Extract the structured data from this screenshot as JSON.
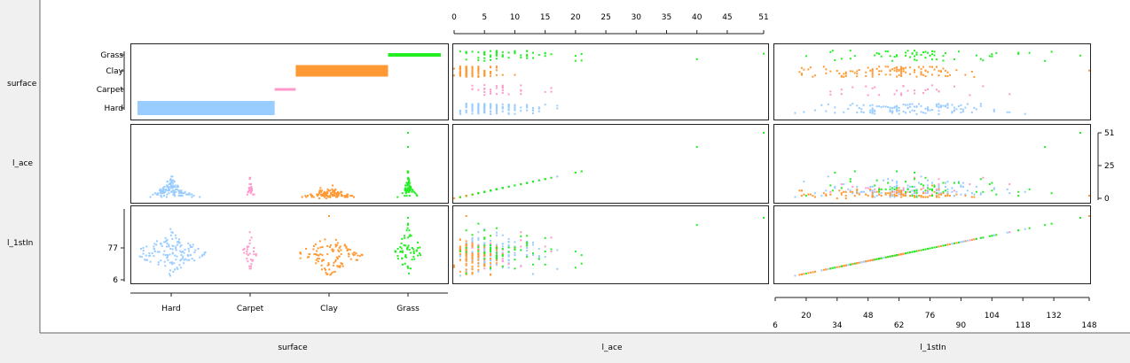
{
  "colors": {
    "Hard": "#99ccff",
    "Carpet": "#ff99cc",
    "Clay": "#ff9933",
    "Grass": "#22ee22"
  },
  "chart_data": {
    "type": "scatter",
    "variables": [
      "surface",
      "l_ace",
      "l_1stIn"
    ],
    "surface": {
      "categories": [
        "Hard",
        "Carpet",
        "Clay",
        "Grass"
      ],
      "counts": [
        52,
        8,
        35,
        20
      ],
      "counts_unit": "percent of rows (shown as bar widths)"
    },
    "l_ace": {
      "ticks": [
        0,
        5,
        10,
        15,
        20,
        25,
        30,
        35,
        40,
        45,
        51
      ],
      "range": [
        0,
        51
      ],
      "right_axis_ticks": [
        0,
        25,
        51
      ]
    },
    "l_1stIn": {
      "ticks_row1": [
        6,
        34,
        62,
        90,
        118,
        148
      ],
      "ticks_row2": [
        20,
        48,
        76,
        104,
        132
      ],
      "range": [
        6,
        148
      ],
      "left_axis_ticks": [
        6,
        77
      ]
    },
    "extreme_points": [
      {
        "surface": "Grass",
        "l_ace": 51,
        "l_1stIn": 144
      },
      {
        "surface": "Grass",
        "l_ace": 40,
        "l_1stIn": 128
      },
      {
        "surface": "Clay",
        "l_ace": 2,
        "l_1stIn": 148
      }
    ]
  }
}
